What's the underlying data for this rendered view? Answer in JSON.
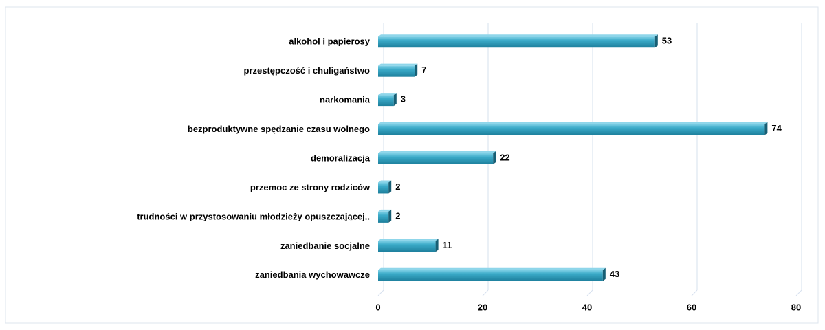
{
  "chart_data": {
    "type": "bar",
    "orientation": "horizontal",
    "categories": [
      "alkohol i papierosy",
      "przestępczość i chuligaństwo",
      "narkomania",
      "bezproduktywne spędzanie czasu wolnego",
      "demoralizacja",
      "przemoc ze strony rodziców",
      "trudności w przystosowaniu młodzieży opuszczającej..",
      "zaniedbanie socjalne",
      "zaniedbania wychowawcze"
    ],
    "values": [
      53,
      7,
      3,
      74,
      22,
      2,
      2,
      11,
      43
    ],
    "color": "#2e9cba",
    "xlim": [
      0,
      80
    ],
    "xticks": [
      0,
      20,
      40,
      60,
      80
    ],
    "grid": true
  }
}
